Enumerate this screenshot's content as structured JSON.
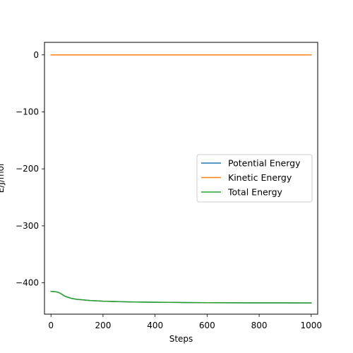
{
  "chart_data": {
    "type": "line",
    "xlabel": "Steps",
    "ylabel": "E/J/mol",
    "xlim": [
      -25,
      1025
    ],
    "ylim": [
      -455,
      22
    ],
    "xticks": [
      0,
      200,
      400,
      600,
      800,
      1000
    ],
    "yticks": [
      0,
      -100,
      -200,
      -300,
      -400
    ],
    "ytick_labels": [
      "0",
      "−100",
      "−200",
      "−300",
      "−400"
    ],
    "grid": false,
    "legend_position": "center-right",
    "series": [
      {
        "name": "Potential Energy",
        "color": "#1f77b4",
        "x": [
          0,
          10,
          20,
          30,
          40,
          50,
          60,
          80,
          100,
          150,
          200,
          300,
          400,
          500,
          600,
          700,
          800,
          900,
          1000
        ],
        "y": [
          -415,
          -415.3,
          -415.8,
          -417,
          -419.5,
          -422.5,
          -424.5,
          -427.5,
          -429,
          -431,
          -432.3,
          -433.5,
          -434.1,
          -434.5,
          -434.8,
          -435,
          -435.1,
          -435.2,
          -435.3
        ]
      },
      {
        "name": "Kinetic Energy",
        "color": "#ff7f0e",
        "x": [
          0,
          1000
        ],
        "y": [
          0,
          0
        ]
      },
      {
        "name": "Total Energy",
        "color": "#2ca02c",
        "x": [
          0,
          10,
          20,
          30,
          40,
          50,
          60,
          80,
          100,
          150,
          200,
          300,
          400,
          500,
          600,
          700,
          800,
          900,
          1000
        ],
        "y": [
          -415,
          -415.3,
          -415.8,
          -417,
          -419.5,
          -422.5,
          -424.5,
          -427.5,
          -429,
          -431,
          -432.3,
          -433.5,
          -434.1,
          -434.5,
          -434.8,
          -435,
          -435.1,
          -435.2,
          -435.3
        ]
      }
    ]
  }
}
